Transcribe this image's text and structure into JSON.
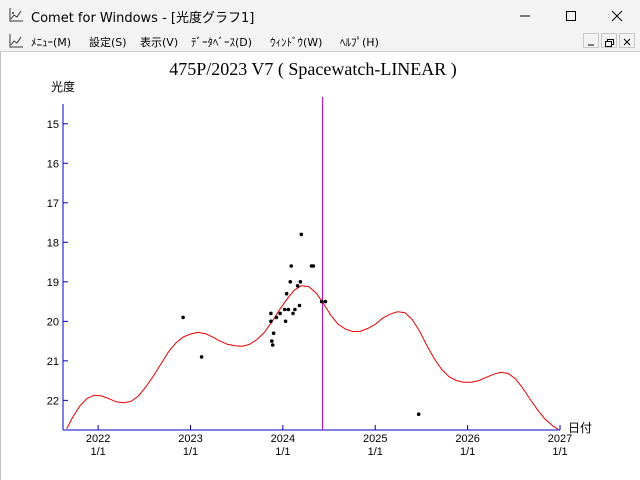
{
  "window": {
    "title": "Comet for Windows - [光度グラフ1]",
    "controls": [
      "minimize",
      "maximize",
      "close"
    ]
  },
  "menu": {
    "items": [
      {
        "label": "ﾒﾆｭｰ(M)"
      },
      {
        "label": "設定(S)"
      },
      {
        "label": "表示(V)"
      },
      {
        "label": "ﾃﾞｰﾀﾍﾞｰｽ(D)"
      },
      {
        "label": "ｳｨﾝﾄﾞｳ(W)"
      },
      {
        "label": "ﾍﾙﾌﾟ(H)"
      }
    ]
  },
  "chart_data": {
    "type": "scatter",
    "title": "475P/2023 V7 ( Spacewatch-LINEAR )",
    "ylabel": "光度",
    "xlabel": "日付",
    "x_unit": "year",
    "xlim": [
      2021.62,
      2027.0
    ],
    "ylim": [
      22.75,
      14.5
    ],
    "y_reversed": true,
    "yticks": [
      15,
      16,
      17,
      18,
      19,
      20,
      21,
      22
    ],
    "xticks": [
      {
        "value": 2022.0,
        "year": "2022",
        "date": "1/1"
      },
      {
        "value": 2023.0,
        "year": "2023",
        "date": "1/1"
      },
      {
        "value": 2024.0,
        "year": "2024",
        "date": "1/1"
      },
      {
        "value": 2025.0,
        "year": "2025",
        "date": "1/1"
      },
      {
        "value": 2026.0,
        "year": "2026",
        "date": "1/1"
      },
      {
        "value": 2027.0,
        "year": "2027",
        "date": "1/1"
      }
    ],
    "current_date_marker": 2024.43,
    "predicted_curve": {
      "color": "#e00000",
      "points": [
        [
          2021.66,
          22.72
        ],
        [
          2021.72,
          22.45
        ],
        [
          2021.8,
          22.15
        ],
        [
          2021.88,
          21.95
        ],
        [
          2021.96,
          21.87
        ],
        [
          2022.04,
          21.89
        ],
        [
          2022.12,
          21.96
        ],
        [
          2022.2,
          22.04
        ],
        [
          2022.28,
          22.06
        ],
        [
          2022.36,
          22.02
        ],
        [
          2022.44,
          21.88
        ],
        [
          2022.52,
          21.65
        ],
        [
          2022.6,
          21.38
        ],
        [
          2022.68,
          21.08
        ],
        [
          2022.76,
          20.78
        ],
        [
          2022.84,
          20.55
        ],
        [
          2022.92,
          20.4
        ],
        [
          2023.0,
          20.32
        ],
        [
          2023.08,
          20.28
        ],
        [
          2023.16,
          20.31
        ],
        [
          2023.24,
          20.4
        ],
        [
          2023.32,
          20.5
        ],
        [
          2023.4,
          20.58
        ],
        [
          2023.48,
          20.62
        ],
        [
          2023.56,
          20.63
        ],
        [
          2023.64,
          20.58
        ],
        [
          2023.72,
          20.46
        ],
        [
          2023.8,
          20.28
        ],
        [
          2023.88,
          20.02
        ],
        [
          2023.96,
          19.72
        ],
        [
          2024.04,
          19.45
        ],
        [
          2024.12,
          19.22
        ],
        [
          2024.2,
          19.1
        ],
        [
          2024.28,
          19.12
        ],
        [
          2024.36,
          19.28
        ],
        [
          2024.44,
          19.55
        ],
        [
          2024.52,
          19.85
        ],
        [
          2024.6,
          20.08
        ],
        [
          2024.68,
          20.2
        ],
        [
          2024.76,
          20.26
        ],
        [
          2024.84,
          20.25
        ],
        [
          2024.92,
          20.18
        ],
        [
          2025.0,
          20.08
        ],
        [
          2025.08,
          19.92
        ],
        [
          2025.16,
          19.82
        ],
        [
          2025.24,
          19.76
        ],
        [
          2025.32,
          19.78
        ],
        [
          2025.4,
          19.95
        ],
        [
          2025.48,
          20.25
        ],
        [
          2025.56,
          20.62
        ],
        [
          2025.64,
          20.95
        ],
        [
          2025.72,
          21.22
        ],
        [
          2025.8,
          21.4
        ],
        [
          2025.88,
          21.5
        ],
        [
          2025.96,
          21.54
        ],
        [
          2026.04,
          21.54
        ],
        [
          2026.12,
          21.5
        ],
        [
          2026.2,
          21.42
        ],
        [
          2026.28,
          21.34
        ],
        [
          2026.36,
          21.29
        ],
        [
          2026.44,
          21.32
        ],
        [
          2026.52,
          21.46
        ],
        [
          2026.6,
          21.7
        ],
        [
          2026.68,
          21.98
        ],
        [
          2026.76,
          22.25
        ],
        [
          2026.84,
          22.48
        ],
        [
          2026.92,
          22.64
        ],
        [
          2026.98,
          22.73
        ]
      ]
    },
    "observations": [
      [
        2022.92,
        19.9
      ],
      [
        2023.12,
        20.9
      ],
      [
        2023.87,
        19.8
      ],
      [
        2023.87,
        20.0
      ],
      [
        2023.88,
        20.5
      ],
      [
        2023.89,
        20.6
      ],
      [
        2023.9,
        20.3
      ],
      [
        2023.93,
        19.9
      ],
      [
        2023.97,
        19.8
      ],
      [
        2024.02,
        19.7
      ],
      [
        2024.03,
        20.0
      ],
      [
        2024.04,
        19.3
      ],
      [
        2024.06,
        19.7
      ],
      [
        2024.08,
        19.0
      ],
      [
        2024.09,
        18.6
      ],
      [
        2024.11,
        19.8
      ],
      [
        2024.13,
        19.7
      ],
      [
        2024.16,
        19.1
      ],
      [
        2024.18,
        19.6
      ],
      [
        2024.19,
        19.0
      ],
      [
        2024.2,
        17.8
      ],
      [
        2024.31,
        18.6
      ],
      [
        2024.33,
        18.6
      ],
      [
        2024.42,
        19.5
      ],
      [
        2024.46,
        19.5
      ],
      [
        2025.47,
        22.35
      ]
    ]
  }
}
